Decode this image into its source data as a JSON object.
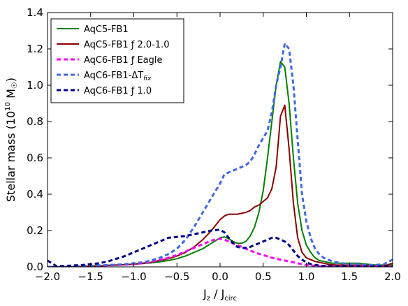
{
  "chart_data": {
    "type": "line",
    "xlabel": "J",
    "xlabel_sub1": "z",
    "xlabel_mid": " / J",
    "xlabel_sub2": "circ",
    "ylabel": "Stellar mass (10",
    "ylabel_exp": "10",
    "ylabel_tail": " M",
    "ylabel_sun": "☉",
    "ylabel_close": ")",
    "xlim": [
      -2.0,
      2.0
    ],
    "ylim": [
      0.0,
      1.4
    ],
    "xticks": [
      "−2.0",
      "−1.5",
      "−1.0",
      "−0.5",
      "0.0",
      "0.5",
      "1.0",
      "1.5",
      "2.0"
    ],
    "xtick_values": [
      -2.0,
      -1.5,
      -1.0,
      -0.5,
      0.0,
      0.5,
      1.0,
      1.5,
      2.0
    ],
    "yticks": [
      "0.0",
      "0.2",
      "0.4",
      "0.6",
      "0.8",
      "1.0",
      "1.2",
      "1.4"
    ],
    "ytick_values": [
      0.0,
      0.2,
      0.4,
      0.6,
      0.8,
      1.0,
      1.2,
      1.4
    ],
    "grid": false,
    "legend_placement": "top-left",
    "x": [
      -2.0,
      -1.9,
      -1.8,
      -1.7,
      -1.6,
      -1.5,
      -1.4,
      -1.3,
      -1.2,
      -1.1,
      -1.0,
      -0.9,
      -0.8,
      -0.7,
      -0.6,
      -0.5,
      -0.4,
      -0.3,
      -0.2,
      -0.1,
      0.0,
      0.05,
      0.1,
      0.15,
      0.2,
      0.25,
      0.3,
      0.35,
      0.4,
      0.45,
      0.5,
      0.55,
      0.6,
      0.65,
      0.7,
      0.75,
      0.8,
      0.85,
      0.9,
      0.95,
      1.0,
      1.05,
      1.1,
      1.15,
      1.2,
      1.25,
      1.3,
      1.35,
      1.4,
      1.5,
      1.6,
      1.7,
      1.8,
      1.9,
      2.0
    ],
    "series": [
      {
        "name": "AqC5-FB1",
        "color": "#008000",
        "style": "solid",
        "values": [
          0.0,
          0.0,
          0.0,
          0.0,
          0.0,
          0.005,
          0.005,
          0.008,
          0.01,
          0.012,
          0.015,
          0.018,
          0.022,
          0.028,
          0.035,
          0.045,
          0.06,
          0.08,
          0.1,
          0.13,
          0.16,
          0.165,
          0.155,
          0.14,
          0.13,
          0.13,
          0.14,
          0.17,
          0.22,
          0.3,
          0.42,
          0.6,
          0.8,
          1.0,
          1.13,
          1.1,
          0.9,
          0.6,
          0.35,
          0.2,
          0.12,
          0.08,
          0.05,
          0.035,
          0.03,
          0.025,
          0.02,
          0.02,
          0.02,
          0.02,
          0.02,
          0.015,
          0.01,
          0.01,
          0.01
        ]
      },
      {
        "name": "AqC5-FB1 ƒ 2.0-1.0",
        "color": "#8b0000",
        "style": "solid",
        "values": [
          0.0,
          0.0,
          0.0,
          0.0,
          0.0,
          0.005,
          0.005,
          0.008,
          0.01,
          0.012,
          0.015,
          0.02,
          0.025,
          0.035,
          0.045,
          0.06,
          0.08,
          0.11,
          0.15,
          0.2,
          0.26,
          0.28,
          0.29,
          0.29,
          0.29,
          0.295,
          0.3,
          0.31,
          0.33,
          0.34,
          0.36,
          0.38,
          0.43,
          0.55,
          0.83,
          0.89,
          0.65,
          0.35,
          0.16,
          0.08,
          0.05,
          0.04,
          0.03,
          0.025,
          0.02,
          0.015,
          0.012,
          0.01,
          0.01,
          0.01,
          0.01,
          0.008,
          0.005,
          0.005,
          0.02
        ]
      },
      {
        "name": "AqC6-FB1 ƒ Eagle",
        "color": "#ff00ff",
        "style": "dashed",
        "values": [
          0.0,
          0.0,
          0.0,
          0.0,
          0.0,
          0.003,
          0.005,
          0.008,
          0.01,
          0.012,
          0.015,
          0.02,
          0.028,
          0.038,
          0.05,
          0.065,
          0.085,
          0.105,
          0.125,
          0.145,
          0.155,
          0.15,
          0.14,
          0.13,
          0.12,
          0.11,
          0.1,
          0.09,
          0.08,
          0.072,
          0.065,
          0.058,
          0.05,
          0.045,
          0.04,
          0.035,
          0.03,
          0.025,
          0.02,
          0.015,
          0.01,
          0.008,
          0.005,
          0.003,
          0.002,
          0.002,
          0.001,
          0.001,
          0.0,
          0.0,
          0.0,
          0.0,
          0.0,
          0.0,
          0.0
        ]
      },
      {
        "name": "AqC6-FB1-ΔT",
        "name_sub": "fix",
        "color": "#4169e1",
        "style": "dashed",
        "values": [
          0.0,
          0.0,
          0.0,
          0.0,
          0.005,
          0.005,
          0.008,
          0.01,
          0.012,
          0.015,
          0.02,
          0.025,
          0.035,
          0.05,
          0.07,
          0.1,
          0.15,
          0.22,
          0.3,
          0.38,
          0.46,
          0.51,
          0.52,
          0.53,
          0.54,
          0.55,
          0.56,
          0.58,
          0.62,
          0.67,
          0.71,
          0.75,
          0.85,
          1.0,
          1.1,
          1.23,
          1.2,
          1.0,
          0.7,
          0.4,
          0.25,
          0.16,
          0.1,
          0.07,
          0.05,
          0.04,
          0.03,
          0.025,
          0.02,
          0.015,
          0.015,
          0.01,
          0.01,
          0.015,
          0.04
        ]
      },
      {
        "name": "AqC6-FB1 ƒ 1.0",
        "color": "#00008b",
        "style": "dashed",
        "values": [
          0.035,
          0.005,
          0.005,
          0.008,
          0.01,
          0.015,
          0.02,
          0.03,
          0.045,
          0.06,
          0.08,
          0.1,
          0.12,
          0.14,
          0.16,
          0.165,
          0.17,
          0.18,
          0.19,
          0.2,
          0.205,
          0.19,
          0.16,
          0.13,
          0.11,
          0.105,
          0.105,
          0.11,
          0.12,
          0.13,
          0.14,
          0.15,
          0.16,
          0.16,
          0.15,
          0.14,
          0.12,
          0.09,
          0.06,
          0.04,
          0.025,
          0.015,
          0.01,
          0.008,
          0.005,
          0.005,
          0.004,
          0.003,
          0.003,
          0.002,
          0.002,
          0.002,
          0.002,
          0.002,
          0.002
        ]
      }
    ]
  }
}
